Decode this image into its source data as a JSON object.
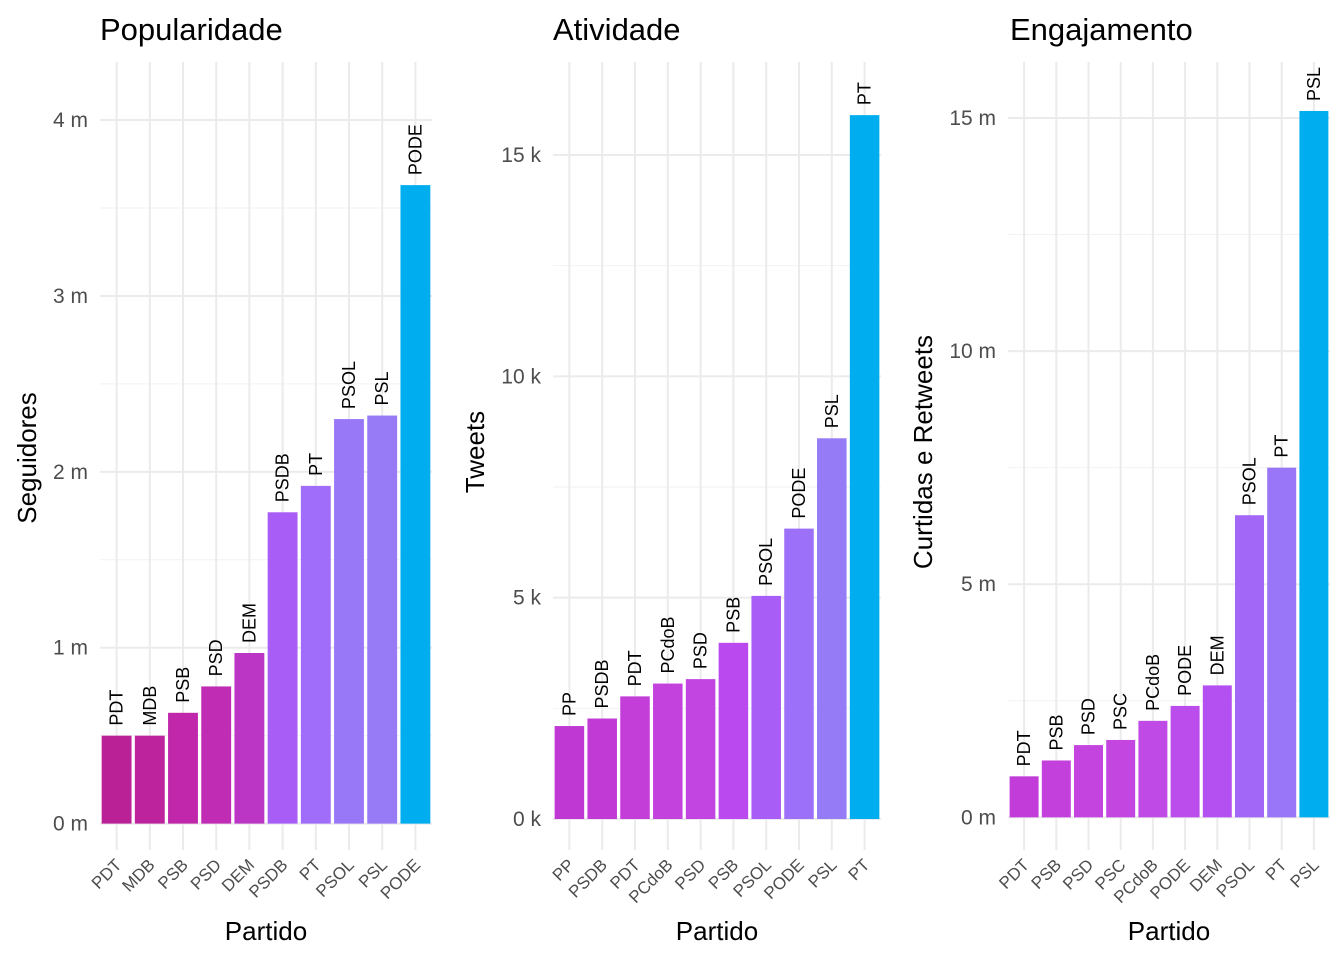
{
  "chart_data": [
    {
      "type": "bar",
      "title": "Popularidade",
      "xlabel": "Partido",
      "ylabel": "Seguidores",
      "categories": [
        "PDT",
        "MDB",
        "PSB",
        "PSD",
        "DEM",
        "PSDB",
        "PT",
        "PSOL",
        "PSL",
        "PODE"
      ],
      "values": [
        500000,
        500000,
        630000,
        780000,
        970000,
        1770000,
        1920000,
        2300000,
        2320000,
        3630000
      ],
      "colors": [
        "#ba2197",
        "#bd239d",
        "#c027ab",
        "#c12cb5",
        "#bb36c5",
        "#a95df7",
        "#9f6df9",
        "#9878f7",
        "#967af6",
        "#00aeef"
      ],
      "yticks": [
        0,
        1000000,
        2000000,
        3000000,
        4000000
      ],
      "ytick_labels": [
        "0 m",
        "1 m",
        "2 m",
        "3 m",
        "4 m"
      ],
      "ylim": [
        -150000,
        4330000
      ],
      "grid": true
    },
    {
      "type": "bar",
      "title": "Atividade",
      "xlabel": "Partido",
      "ylabel": "Tweets",
      "categories": [
        "PP",
        "PSDB",
        "PDT",
        "PCdoB",
        "PSD",
        "PSB",
        "PSOL",
        "PODE",
        "PSL",
        "PT"
      ],
      "values": [
        2100,
        2270,
        2770,
        3060,
        3160,
        3980,
        5040,
        6560,
        8600,
        15900
      ],
      "colors": [
        "#bf38d3",
        "#c13ad5",
        "#c33ed9",
        "#c342de",
        "#c244e1",
        "#ba49f0",
        "#a95df7",
        "#9c70f8",
        "#957bf6",
        "#00aeef"
      ],
      "yticks": [
        0,
        5000,
        10000,
        15000
      ],
      "ytick_labels": [
        "0 k",
        "5 k",
        "10 k",
        "15 k"
      ],
      "ylim": [
        -700,
        17100
      ],
      "grid": true
    },
    {
      "type": "bar",
      "title": "Engajamento",
      "xlabel": "Partido",
      "ylabel": "Curtidas e Retweets",
      "categories": [
        "PDT",
        "PSB",
        "PSD",
        "PSC",
        "PCdoB",
        "PODE",
        "DEM",
        "PSOL",
        "PT",
        "PSL"
      ],
      "values": [
        880000,
        1220000,
        1550000,
        1660000,
        2070000,
        2390000,
        2830000,
        6480000,
        7500000,
        15150000
      ],
      "colors": [
        "#c13cd8",
        "#c340dc",
        "#c444df",
        "#c446e1",
        "#c04ae6",
        "#bb4ded",
        "#b44ff1",
        "#a267f7",
        "#9876f7",
        "#00aeef"
      ],
      "yticks": [
        0,
        5000000,
        10000000,
        15000000
      ],
      "ytick_labels": [
        "0 m",
        "5 m",
        "10 m",
        "15 m"
      ],
      "ylim": [
        -700000,
        16200000
      ],
      "grid": true
    }
  ]
}
